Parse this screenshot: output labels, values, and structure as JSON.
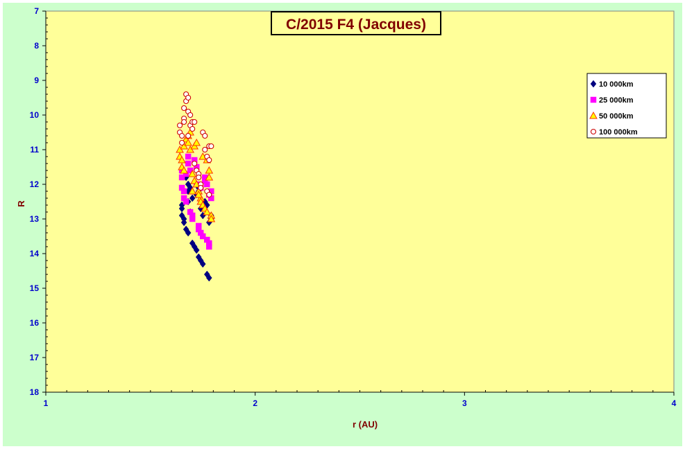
{
  "chart_data": {
    "type": "scatter",
    "title": "C/2015 F4 (Jacques)",
    "xlabel": "r (AU)",
    "ylabel": "R",
    "xlim": [
      1,
      4
    ],
    "ylim": [
      18,
      7
    ],
    "y_inverted": true,
    "x_ticks": [
      "1",
      "2",
      "3",
      "4"
    ],
    "y_ticks": [
      "7",
      "8",
      "9",
      "10",
      "11",
      "12",
      "13",
      "14",
      "15",
      "16",
      "17",
      "18"
    ],
    "plot_background": "#ffff99",
    "figure_background": "#ccffcc",
    "tick_label_color": "#0000cc",
    "axis_title_color": "#800000",
    "title_color": "#800000",
    "grid": false,
    "legend_position": "top-right",
    "series": [
      {
        "name": "10 000km",
        "marker": "diamond",
        "color": "#000080",
        "points": [
          [
            1.65,
            12.6
          ],
          [
            1.65,
            12.7
          ],
          [
            1.65,
            12.9
          ],
          [
            1.66,
            13.0
          ],
          [
            1.66,
            13.1
          ],
          [
            1.67,
            13.3
          ],
          [
            1.68,
            13.4
          ],
          [
            1.68,
            12.2
          ],
          [
            1.68,
            12.5
          ],
          [
            1.69,
            12.8
          ],
          [
            1.7,
            13.7
          ],
          [
            1.71,
            13.8
          ],
          [
            1.72,
            13.9
          ],
          [
            1.72,
            12.3
          ],
          [
            1.73,
            12.1
          ],
          [
            1.73,
            12.2
          ],
          [
            1.73,
            14.1
          ],
          [
            1.74,
            14.2
          ],
          [
            1.74,
            12.7
          ],
          [
            1.75,
            14.3
          ],
          [
            1.75,
            12.9
          ],
          [
            1.76,
            12.5
          ],
          [
            1.77,
            12.6
          ],
          [
            1.77,
            14.6
          ],
          [
            1.78,
            14.7
          ],
          [
            1.78,
            13.1
          ],
          [
            1.79,
            13.0
          ],
          [
            1.79,
            12.9
          ],
          [
            1.67,
            11.8
          ],
          [
            1.68,
            12.0
          ],
          [
            1.69,
            12.1
          ],
          [
            1.7,
            12.4
          ]
        ]
      },
      {
        "name": "25 000km",
        "marker": "square",
        "color": "#ff00ff",
        "points": [
          [
            1.65,
            11.6
          ],
          [
            1.65,
            11.8
          ],
          [
            1.65,
            12.1
          ],
          [
            1.66,
            12.2
          ],
          [
            1.66,
            12.4
          ],
          [
            1.67,
            12.5
          ],
          [
            1.67,
            11.7
          ],
          [
            1.68,
            11.2
          ],
          [
            1.68,
            11.4
          ],
          [
            1.69,
            12.8
          ],
          [
            1.69,
            11.6
          ],
          [
            1.7,
            12.9
          ],
          [
            1.7,
            13.0
          ],
          [
            1.71,
            11.3
          ],
          [
            1.72,
            11.5
          ],
          [
            1.73,
            13.2
          ],
          [
            1.73,
            13.3
          ],
          [
            1.74,
            13.4
          ],
          [
            1.75,
            13.5
          ],
          [
            1.76,
            11.9
          ],
          [
            1.76,
            11.8
          ],
          [
            1.77,
            12.0
          ],
          [
            1.77,
            13.6
          ],
          [
            1.78,
            13.7
          ],
          [
            1.78,
            13.8
          ],
          [
            1.78,
            12.3
          ],
          [
            1.79,
            12.2
          ],
          [
            1.79,
            12.4
          ],
          [
            1.72,
            12.0
          ],
          [
            1.74,
            12.1
          ]
        ]
      },
      {
        "name": "50 000km",
        "marker": "triangle",
        "color": "#ff3300",
        "fill": "#ffff00",
        "points": [
          [
            1.64,
            11.0
          ],
          [
            1.64,
            11.2
          ],
          [
            1.65,
            11.3
          ],
          [
            1.65,
            11.5
          ],
          [
            1.66,
            11.6
          ],
          [
            1.66,
            10.9
          ],
          [
            1.67,
            10.7
          ],
          [
            1.68,
            10.6
          ],
          [
            1.68,
            10.8
          ],
          [
            1.69,
            10.5
          ],
          [
            1.69,
            11.0
          ],
          [
            1.7,
            11.7
          ],
          [
            1.71,
            11.9
          ],
          [
            1.71,
            10.9
          ],
          [
            1.72,
            10.8
          ],
          [
            1.72,
            12.0
          ],
          [
            1.73,
            12.2
          ],
          [
            1.74,
            12.4
          ],
          [
            1.74,
            12.5
          ],
          [
            1.75,
            12.6
          ],
          [
            1.75,
            11.2
          ],
          [
            1.76,
            12.7
          ],
          [
            1.77,
            12.8
          ],
          [
            1.77,
            11.3
          ],
          [
            1.78,
            11.6
          ],
          [
            1.78,
            11.8
          ],
          [
            1.79,
            12.9
          ],
          [
            1.79,
            13.0
          ],
          [
            1.7,
            12.2
          ],
          [
            1.73,
            12.3
          ]
        ]
      },
      {
        "name": "100 000km",
        "marker": "circle",
        "color": "#cc0000",
        "fill": "#ffffff",
        "points": [
          [
            1.64,
            10.3
          ],
          [
            1.64,
            10.5
          ],
          [
            1.65,
            10.6
          ],
          [
            1.65,
            10.8
          ],
          [
            1.66,
            10.1
          ],
          [
            1.66,
            10.2
          ],
          [
            1.67,
            9.4
          ],
          [
            1.67,
            9.6
          ],
          [
            1.68,
            9.5
          ],
          [
            1.68,
            9.9
          ],
          [
            1.69,
            10.0
          ],
          [
            1.69,
            10.3
          ],
          [
            1.7,
            10.4
          ],
          [
            1.7,
            10.2
          ],
          [
            1.71,
            11.4
          ],
          [
            1.71,
            10.2
          ],
          [
            1.72,
            11.6
          ],
          [
            1.73,
            11.7
          ],
          [
            1.73,
            11.8
          ],
          [
            1.74,
            12.0
          ],
          [
            1.74,
            12.1
          ],
          [
            1.75,
            10.5
          ],
          [
            1.76,
            10.6
          ],
          [
            1.76,
            11.0
          ],
          [
            1.77,
            11.2
          ],
          [
            1.78,
            11.3
          ],
          [
            1.78,
            10.9
          ],
          [
            1.79,
            10.9
          ],
          [
            1.77,
            12.2
          ],
          [
            1.78,
            12.3
          ],
          [
            1.68,
            10.6
          ],
          [
            1.66,
            9.8
          ]
        ]
      }
    ]
  }
}
